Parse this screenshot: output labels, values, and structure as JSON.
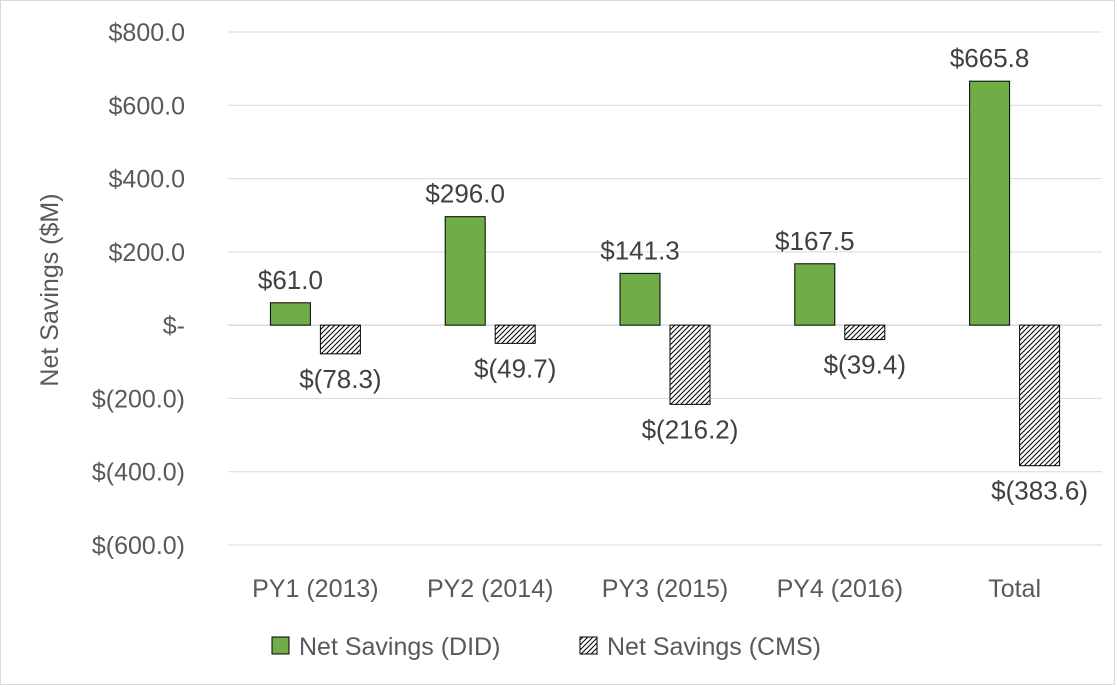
{
  "chart_data": {
    "type": "bar",
    "title": "",
    "xlabel": "",
    "ylabel": "Net Savings ($M)",
    "ylim": [
      -600,
      800
    ],
    "yticks": [
      800,
      600,
      400,
      200,
      0,
      -200,
      -400,
      -600
    ],
    "ytick_labels": [
      "$800.0",
      "$600.0",
      "$400.0",
      "$200.0",
      "$-",
      "$(200.0)",
      "$(400.0)",
      "$(600.0)"
    ],
    "grid": true,
    "legend_position": "bottom",
    "categories": [
      "PY1 (2013)",
      "PY2 (2014)",
      "PY3 (2015)",
      "PY4 (2016)",
      "Total"
    ],
    "series": [
      {
        "name": "Net Savings (DID)",
        "values": [
          61.0,
          296.0,
          141.3,
          167.5,
          665.8
        ],
        "labels": [
          "$61.0",
          "$296.0",
          "$141.3",
          "$167.5",
          "$665.8"
        ],
        "color": "#70ad47",
        "pattern": "solid"
      },
      {
        "name": "Net Savings (CMS)",
        "values": [
          -78.3,
          -49.7,
          -216.2,
          -39.4,
          -383.6
        ],
        "labels": [
          "$(78.3)",
          "$(49.7)",
          "$(216.2)",
          "$(39.4)",
          "$(383.6)"
        ],
        "color": "#000000",
        "pattern": "hatch"
      }
    ]
  }
}
